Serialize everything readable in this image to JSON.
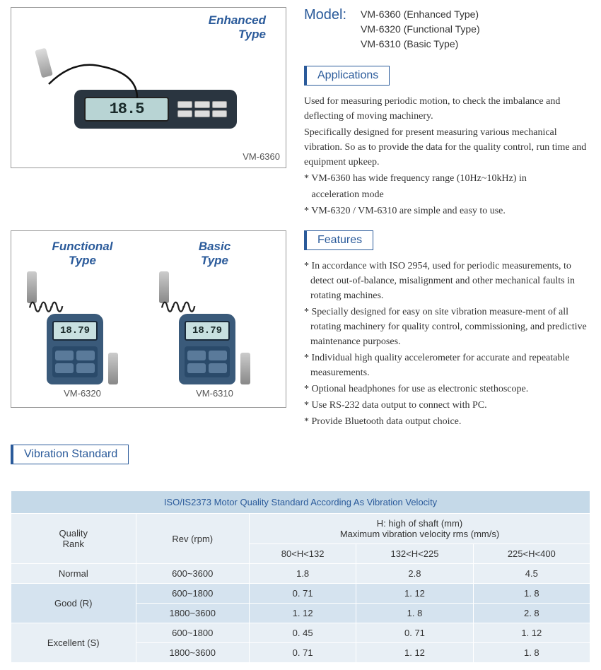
{
  "model": {
    "label": "Model:",
    "items": [
      "VM-6360 (Enhanced Type)",
      "VM-6320 (Functional Type)",
      "VM-6310 (Basic Type)"
    ]
  },
  "img1": {
    "type_l1": "Enhanced",
    "type_l2": "Type",
    "caption": "VM-6360",
    "lcd": "18.5"
  },
  "img2": {
    "left": {
      "type_l1": "Functional",
      "type_l2": "Type",
      "caption": "VM-6320",
      "lcd": "18.79"
    },
    "right": {
      "type_l1": "Basic",
      "type_l2": "Type",
      "caption": "VM-6310",
      "lcd": "18.79"
    }
  },
  "apps": {
    "hdr": "Applications",
    "lines": [
      "Used for measuring periodic motion, to check the imbalance and deflecting of moving machinery.",
      "Specifically designed for present measuring various mechanical vibration. So as to provide the data for the quality control, run time and equipment upkeep.",
      "* VM-6360 has wide frequency range (10Hz~10kHz) in",
      "   acceleration mode",
      "* VM-6320 / VM-6310 are simple and easy to use."
    ]
  },
  "feat": {
    "hdr": "Features",
    "lines": [
      "* In accordance with ISO 2954, used for periodic measurements, to detect out-of-balance, misalignment and other mechanical faults in rotating machines.",
      "* Specially designed for easy on site vibration measure-ment of all rotating machinery for quality control, commissioning, and predictive maintenance purposes.",
      "* Individual high quality accelerometer for accurate and repeatable measurements.",
      "* Optional headphones for use as electronic stethoscope.",
      "* Use RS-232 data output to connect with PC.",
      "* Provide Bluetooth data output choice."
    ]
  },
  "vibstd": {
    "hdr": "Vibration Standard"
  },
  "table": {
    "title": "ISO/IS2373 Motor Quality Standard According As Vibration Velocity",
    "h_quality": "Quality\nRank",
    "h_rev": "Rev (rpm)",
    "h_shaft": "H: high of shaft (mm)\nMaximum vibration velocity rms (mm/s)",
    "sub": [
      "80<H<132",
      "132<H<225",
      "225<H<400"
    ],
    "rows": [
      {
        "q": "Normal",
        "rev": "600~3600",
        "v": [
          "1.8",
          "2.8",
          "4.5"
        ],
        "cls": "r-norm"
      },
      {
        "q": "Good (R)",
        "rev": "600~1800",
        "v": [
          "0. 71",
          "1. 12",
          "1. 8"
        ],
        "cls": "r-good",
        "span": 2
      },
      {
        "rev": "1800~3600",
        "v": [
          "1. 12",
          "1. 8",
          "2. 8"
        ],
        "cls": "r-good"
      },
      {
        "q": "Excellent (S)",
        "rev": "600~1800",
        "v": [
          "0. 45",
          "0. 71",
          "1. 12"
        ],
        "cls": "r-exc",
        "span": 2
      },
      {
        "rev": "1800~3600",
        "v": [
          "0. 71",
          "1. 12",
          "1. 8"
        ],
        "cls": "r-exc"
      }
    ]
  }
}
